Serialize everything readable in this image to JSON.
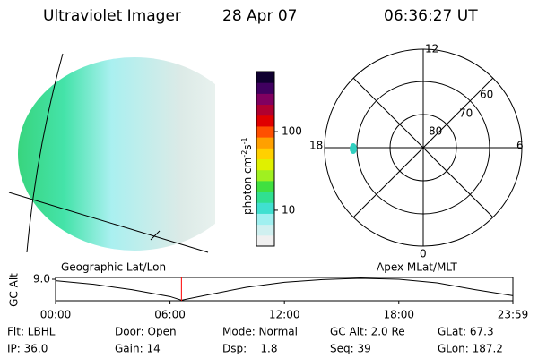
{
  "header": {
    "instrument": "Ultraviolet Imager",
    "date": "28 Apr 07",
    "time": "06:36:27 UT"
  },
  "colorbar": {
    "label": "photon cm",
    "exp1": "-2",
    "unit2": "s",
    "exp2": "-1",
    "log": true,
    "lim": [
      3.5,
      580
    ],
    "ticks": [
      10,
      100
    ]
  },
  "polar": {
    "hours": {
      "top": "12",
      "bottom": "0",
      "left": "18",
      "right": "6"
    },
    "rings": [
      "80",
      "70",
      "60"
    ]
  },
  "altitude": {
    "left_label": "Geographic Lat/Lon",
    "right_label": "Apex MLat/MLT",
    "y_label": "GC Alt",
    "ylim": [
      1.8,
      9.6
    ],
    "yticks": [
      {
        "value": 9,
        "label": "9.0"
      }
    ],
    "xlim": [
      0,
      23.983
    ],
    "xticks": [
      {
        "value": 0,
        "label": "00:00"
      },
      {
        "value": 6,
        "label": "06:00"
      },
      {
        "value": 12,
        "label": "12:00"
      },
      {
        "value": 18,
        "label": "18:00"
      },
      {
        "value": 23.983,
        "label": "23:59"
      }
    ],
    "x": [
      0,
      2,
      4,
      6,
      6.6,
      8,
      10,
      12,
      14,
      16,
      18,
      20,
      22,
      23.983
    ],
    "values": [
      8.5,
      7.3,
      5.5,
      3.2,
      2.0,
      3.8,
      6.3,
      8.0,
      8.9,
      9.3,
      9.0,
      7.8,
      5.5,
      3.5
    ],
    "marker": 6.6,
    "marker_color": "#ff0000"
  },
  "footer": {
    "rows": [
      [
        "Flt: LBHL",
        "Door: Open",
        "Mode: Normal",
        "GC Alt: 2.0 Re",
        "GLat: 67.3"
      ],
      [
        "IP: 36.0",
        "Gain: 14",
        "Dsp:    1.8",
        "Seq: 39",
        "GLon: 187.2"
      ]
    ]
  }
}
